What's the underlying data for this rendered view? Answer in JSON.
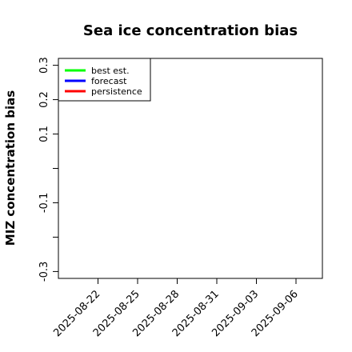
{
  "chart_data": {
    "type": "line",
    "title": "Sea ice concentration bias",
    "xlabel": "",
    "ylabel": "MIZ concentration bias",
    "ylim": [
      -0.32,
      0.32
    ],
    "xlim": [
      "2025-08-19",
      "2025-09-08"
    ],
    "y_ticks": [
      {
        "value": 0.3,
        "label": "0.3"
      },
      {
        "value": 0.2,
        "label": "0.2"
      },
      {
        "value": 0.1,
        "label": "0.1"
      },
      {
        "value": -0.1,
        "label": "-0.1"
      },
      {
        "value": -0.3,
        "label": "-0.3"
      }
    ],
    "y_minor_ticks": [
      0.0,
      -0.2
    ],
    "x_ticks": [
      {
        "date": "2025-08-22",
        "label": "2025-08-22",
        "color": "#000000"
      },
      {
        "date": "2025-08-25",
        "label": "2025-08-25",
        "color": "#000000"
      },
      {
        "date": "2025-08-28",
        "label": "2025-08-28",
        "color": "#228B22"
      },
      {
        "date": "2025-08-31",
        "label": "2025-08-31",
        "color": "#000000"
      },
      {
        "date": "2025-09-03",
        "label": "2025-09-03",
        "color": "#000000"
      },
      {
        "date": "2025-09-06",
        "label": "2025-09-06",
        "color": "#000000"
      }
    ],
    "grid": false,
    "legend_position": "top-left",
    "series": [
      {
        "name": "best est.",
        "color": "#00ff00",
        "points": []
      },
      {
        "name": "forecast",
        "color": "#0000ff",
        "points": []
      },
      {
        "name": "persistence",
        "color": "#ff0000",
        "points": []
      }
    ]
  }
}
